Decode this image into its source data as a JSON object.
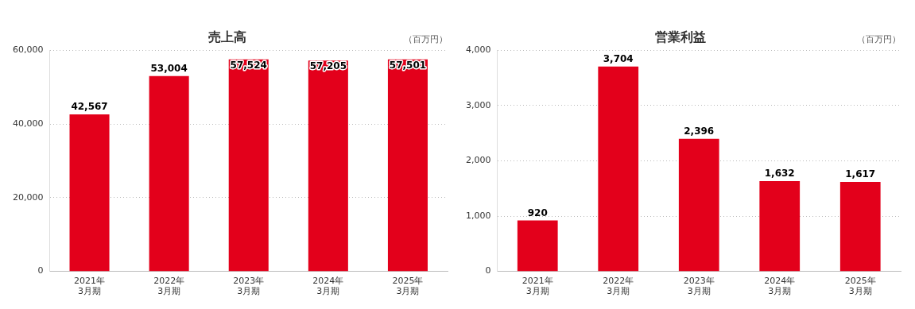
{
  "chart_data": [
    {
      "type": "bar",
      "title": "売上高",
      "ylabel": "（百万円）",
      "categories": [
        "2021年\n3月期",
        "2022年\n3月期",
        "2023年\n3月期",
        "2024年\n3月期",
        "2025年\n3月期"
      ],
      "values": [
        42567,
        53004,
        57524,
        57205,
        57501
      ],
      "value_labels": [
        "42,567",
        "53,004",
        "57,524",
        "57,205",
        "57,501"
      ],
      "color": "#e3001b",
      "ylim": [
        0,
        60000
      ],
      "yticks": [
        {
          "value": 0,
          "label": "0"
        },
        {
          "value": 20000,
          "label": "20,000"
        },
        {
          "value": 40000,
          "label": "40,000"
        },
        {
          "value": 60000,
          "label": "60,000"
        }
      ],
      "grid": "y",
      "legend": false
    },
    {
      "type": "bar",
      "title": "営業利益",
      "ylabel": "（百万円）",
      "categories": [
        "2021年\n3月期",
        "2022年\n3月期",
        "2023年\n3月期",
        "2024年\n3月期",
        "2025年\n3月期"
      ],
      "values": [
        920,
        3704,
        2396,
        1632,
        1617
      ],
      "value_labels": [
        "920",
        "3,704",
        "2,396",
        "1,632",
        "1,617"
      ],
      "color": "#e3001b",
      "ylim": [
        0,
        4000
      ],
      "yticks": [
        {
          "value": 0,
          "label": "0"
        },
        {
          "value": 1000,
          "label": "1,000"
        },
        {
          "value": 2000,
          "label": "2,000"
        },
        {
          "value": 3000,
          "label": "3,000"
        },
        {
          "value": 4000,
          "label": "4,000"
        }
      ],
      "grid": "y",
      "legend": false
    }
  ]
}
